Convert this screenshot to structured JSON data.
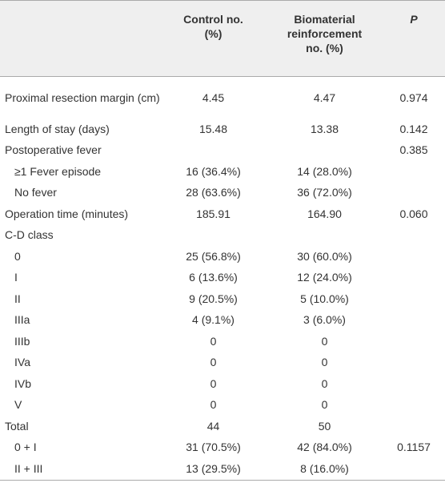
{
  "table": {
    "header": [
      null,
      [
        "Control no.",
        "(%)"
      ],
      [
        "Biomaterial",
        "reinforcement",
        "no. (%)"
      ],
      "P"
    ],
    "rows": [
      [
        "Proximal resection margin (cm)",
        "4.45",
        "4.47",
        "0.974"
      ],
      [
        "Length of stay (days)",
        "15.48",
        "13.38",
        "0.142"
      ],
      [
        "Postoperative fever",
        null,
        null,
        "0.385"
      ],
      [
        "≥1 Fever episode",
        "16 (36.4%)",
        "14 (28.0%)",
        null
      ],
      [
        "No fever",
        "28 (63.6%)",
        "36 (72.0%)",
        null
      ],
      [
        "Operation time (minutes)",
        "185.91",
        "164.90",
        "0.060"
      ],
      [
        "C-D class",
        null,
        null,
        null
      ],
      [
        "0",
        "25 (56.8%)",
        "30 (60.0%)",
        null
      ],
      [
        "I",
        "6 (13.6%)",
        "12 (24.0%)",
        null
      ],
      [
        "II",
        "9 (20.5%)",
        "5 (10.0%)",
        null
      ],
      [
        "IIIa",
        "4 (9.1%)",
        "3 (6.0%)",
        null
      ],
      [
        "IIIb",
        "0",
        "0",
        null
      ],
      [
        "IVa",
        "0",
        "0",
        null
      ],
      [
        "IVb",
        "0",
        "0",
        null
      ],
      [
        "V",
        "0",
        "0",
        null
      ],
      [
        "Total",
        "44",
        "50",
        null
      ],
      [
        "0 + I",
        "31 (70.5%)",
        "42 (84.0%)",
        "0.1157"
      ],
      [
        "II + III",
        "13 (29.5%)",
        "8 (16.0%)",
        null
      ]
    ]
  }
}
